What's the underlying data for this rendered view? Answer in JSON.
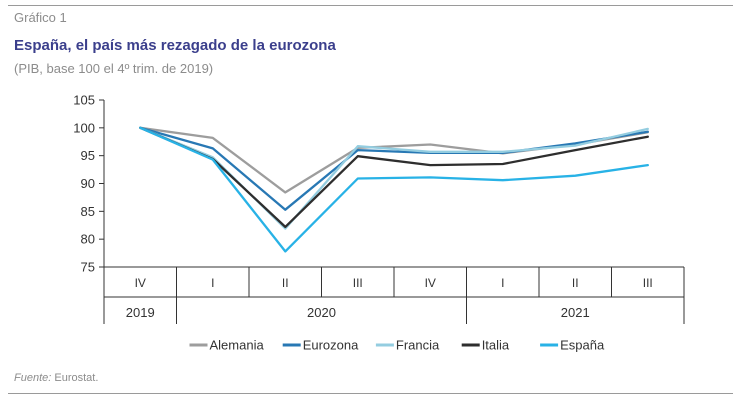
{
  "figure_label": "Gráfico 1",
  "source_label": "Fuente:",
  "source_text": "Eurostat.",
  "chart_data": {
    "type": "line",
    "title": "España, el país más rezagado de la eurozona",
    "subtitle": "(PIB, base 100 el 4º trim. de 2019)",
    "categories": [
      "IV",
      "I",
      "II",
      "III",
      "IV",
      "I",
      "II",
      "III"
    ],
    "year_groups": [
      {
        "label": "2019",
        "start": 0,
        "end": 0
      },
      {
        "label": "2020",
        "start": 1,
        "end": 4
      },
      {
        "label": "2021",
        "start": 5,
        "end": 7
      }
    ],
    "ylim": [
      75,
      105
    ],
    "yticks": [
      75,
      80,
      85,
      90,
      95,
      100,
      105
    ],
    "grid": false,
    "legend_position": "bottom",
    "series": [
      {
        "name": "Alemania",
        "color": "#9d9d9d",
        "values": [
          100,
          98.2,
          88.4,
          96.4,
          97.0,
          95.4,
          97.0,
          99.2
        ]
      },
      {
        "name": "Eurozona",
        "color": "#2878b4",
        "values": [
          100,
          96.3,
          85.3,
          96.0,
          95.5,
          95.5,
          97.2,
          99.3
        ]
      },
      {
        "name": "Francia",
        "color": "#94cde0",
        "values": [
          100,
          94.7,
          81.9,
          96.7,
          95.7,
          95.7,
          96.8,
          99.8
        ]
      },
      {
        "name": "Italia",
        "color": "#2e2e2e",
        "values": [
          100,
          94.4,
          82.2,
          94.9,
          93.3,
          93.5,
          96.0,
          98.4
        ]
      },
      {
        "name": "España",
        "color": "#28b2e6",
        "values": [
          100,
          94.3,
          77.8,
          90.9,
          91.1,
          90.6,
          91.4,
          93.3
        ]
      }
    ]
  }
}
